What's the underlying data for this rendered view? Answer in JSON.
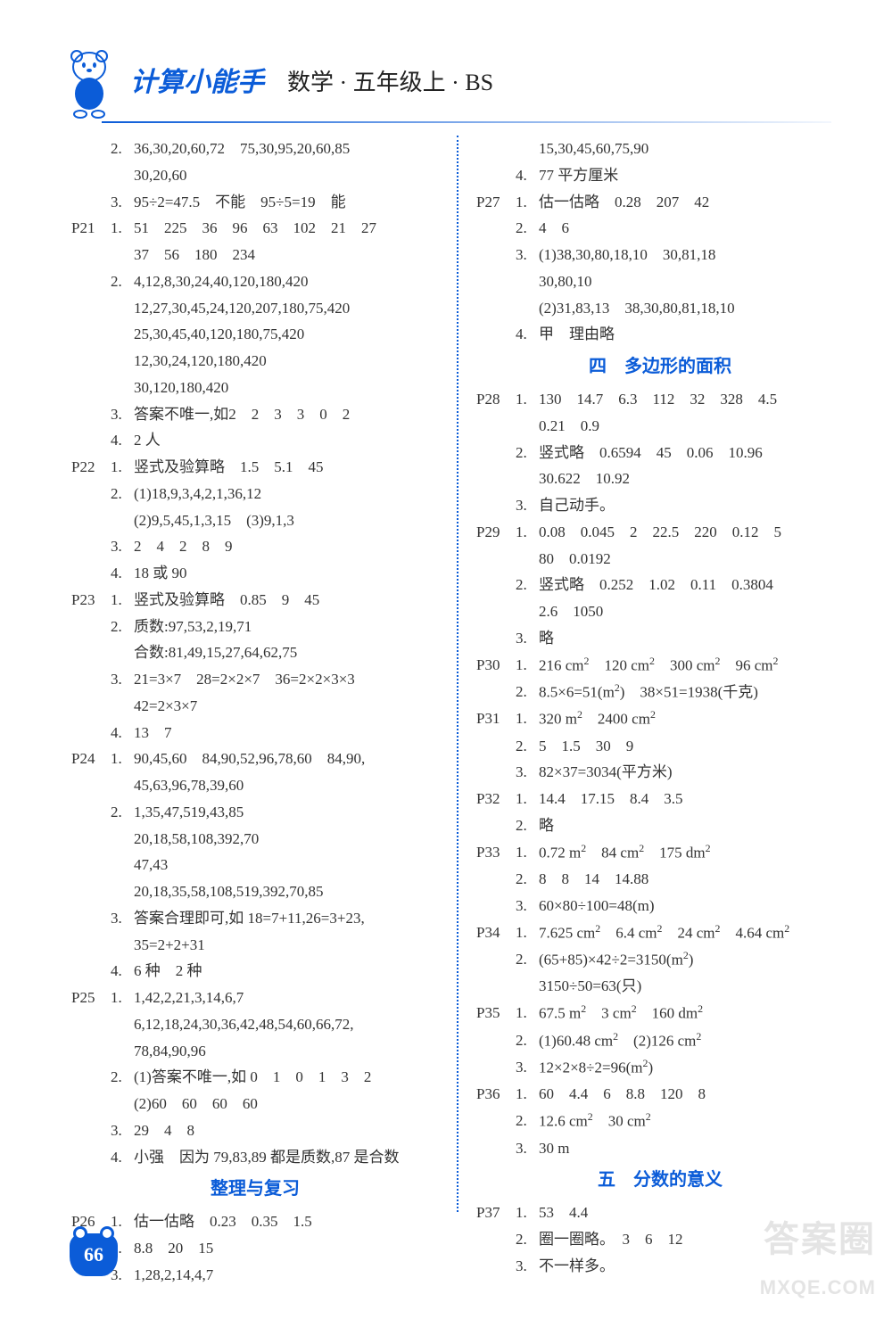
{
  "header": {
    "series_title": "计算小能手",
    "subtitle": "数学 · 五年级上 · BS"
  },
  "page_number": "66",
  "watermark": {
    "line1": "答案圈",
    "line2": "MXQE.COM"
  },
  "sections": {
    "review": "整理与复习",
    "ch4": "四　多边形的面积",
    "ch5": "五　分数的意义"
  },
  "left": [
    {
      "p": "",
      "q": "2.",
      "t": "36,30,20,60,72　75,30,95,20,60,85"
    },
    {
      "p": "",
      "q": "",
      "t": "30,20,60"
    },
    {
      "p": "",
      "q": "3.",
      "t": "95÷2=47.5　不能　95÷5=19　能"
    },
    {
      "p": "P21",
      "q": "1.",
      "t": "51　225　36　96　63　102　21　27"
    },
    {
      "p": "",
      "q": "",
      "t": "37　56　180　234"
    },
    {
      "p": "",
      "q": "2.",
      "t": "4,12,8,30,24,40,120,180,420"
    },
    {
      "p": "",
      "q": "",
      "t": "12,27,30,45,24,120,207,180,75,420"
    },
    {
      "p": "",
      "q": "",
      "t": "25,30,45,40,120,180,75,420"
    },
    {
      "p": "",
      "q": "",
      "t": "12,30,24,120,180,420"
    },
    {
      "p": "",
      "q": "",
      "t": "30,120,180,420"
    },
    {
      "p": "",
      "q": "3.",
      "t": "答案不唯一,如2　2　3　3　0　2"
    },
    {
      "p": "",
      "q": "4.",
      "t": "2 人"
    },
    {
      "p": "P22",
      "q": "1.",
      "t": "竖式及验算略　1.5　5.1　45"
    },
    {
      "p": "",
      "q": "2.",
      "t": "(1)18,9,3,4,2,1,36,12"
    },
    {
      "p": "",
      "q": "",
      "t": "(2)9,5,45,1,3,15　(3)9,1,3"
    },
    {
      "p": "",
      "q": "3.",
      "t": "2　4　2　8　9"
    },
    {
      "p": "",
      "q": "4.",
      "t": "18 或 90"
    },
    {
      "p": "P23",
      "q": "1.",
      "t": "竖式及验算略　0.85　9　45"
    },
    {
      "p": "",
      "q": "2.",
      "t": "质数:97,53,2,19,71"
    },
    {
      "p": "",
      "q": "",
      "t": "合数:81,49,15,27,64,62,75"
    },
    {
      "p": "",
      "q": "3.",
      "t": "21=3×7　28=2×2×7　36=2×2×3×3"
    },
    {
      "p": "",
      "q": "",
      "t": "42=2×3×7"
    },
    {
      "p": "",
      "q": "4.",
      "t": "13　7"
    },
    {
      "p": "P24",
      "q": "1.",
      "t": "90,45,60　84,90,52,96,78,60　84,90,"
    },
    {
      "p": "",
      "q": "",
      "t": "45,63,96,78,39,60"
    },
    {
      "p": "",
      "q": "2.",
      "t": "1,35,47,519,43,85"
    },
    {
      "p": "",
      "q": "",
      "t": "20,18,58,108,392,70"
    },
    {
      "p": "",
      "q": "",
      "t": "47,43"
    },
    {
      "p": "",
      "q": "",
      "t": "20,18,35,58,108,519,392,70,85"
    },
    {
      "p": "",
      "q": "3.",
      "t": "答案合理即可,如 18=7+11,26=3+23,"
    },
    {
      "p": "",
      "q": "",
      "t": "35=2+2+31"
    },
    {
      "p": "",
      "q": "4.",
      "t": "6 种　2 种"
    },
    {
      "p": "P25",
      "q": "1.",
      "t": "1,42,2,21,3,14,6,7"
    },
    {
      "p": "",
      "q": "",
      "t": "6,12,18,24,30,36,42,48,54,60,66,72,"
    },
    {
      "p": "",
      "q": "",
      "t": "78,84,90,96"
    },
    {
      "p": "",
      "q": "2.",
      "t": "(1)答案不唯一,如 0　1　0　1　3　2"
    },
    {
      "p": "",
      "q": "",
      "t": "(2)60　60　60　60"
    },
    {
      "p": "",
      "q": "3.",
      "t": "29　4　8"
    },
    {
      "p": "",
      "q": "4.",
      "t": "小强　因为 79,83,89 都是质数,87 是合数"
    },
    {
      "section": "review"
    },
    {
      "p": "P26",
      "q": "1.",
      "t": "估一估略　0.23　0.35　1.5"
    },
    {
      "p": "",
      "q": "2.",
      "t": "8.8　20　15"
    },
    {
      "p": "",
      "q": "3.",
      "t": "1,28,2,14,4,7"
    }
  ],
  "right": [
    {
      "p": "",
      "q": "",
      "t": "15,30,45,60,75,90"
    },
    {
      "p": "",
      "q": "4.",
      "t": "77 平方厘米"
    },
    {
      "p": "P27",
      "q": "1.",
      "t": "估一估略　0.28　207　42"
    },
    {
      "p": "",
      "q": "2.",
      "t": "4　6"
    },
    {
      "p": "",
      "q": "3.",
      "t": "(1)38,30,80,18,10　30,81,18"
    },
    {
      "p": "",
      "q": "",
      "t": "30,80,10"
    },
    {
      "p": "",
      "q": "",
      "t": "(2)31,83,13　38,30,80,81,18,10"
    },
    {
      "p": "",
      "q": "4.",
      "t": "甲　理由略"
    },
    {
      "section": "ch4"
    },
    {
      "p": "P28",
      "q": "1.",
      "t": "130　14.7　6.3　112　32　328　4.5"
    },
    {
      "p": "",
      "q": "",
      "t": "0.21　0.9"
    },
    {
      "p": "",
      "q": "2.",
      "t": "竖式略　0.6594　45　0.06　10.96"
    },
    {
      "p": "",
      "q": "",
      "t": "30.622　10.92"
    },
    {
      "p": "",
      "q": "3.",
      "t": "自己动手。"
    },
    {
      "p": "P29",
      "q": "1.",
      "t": "0.08　0.045　2　22.5　220　0.12　5"
    },
    {
      "p": "",
      "q": "",
      "t": "80　0.0192"
    },
    {
      "p": "",
      "q": "2.",
      "t": "竖式略　0.252　1.02　0.11　0.3804"
    },
    {
      "p": "",
      "q": "",
      "t": "2.6　1050"
    },
    {
      "p": "",
      "q": "3.",
      "t": "略"
    },
    {
      "p": "P30",
      "q": "1.",
      "t": "216 cm²　120 cm²　300 cm²　96 cm²"
    },
    {
      "p": "",
      "q": "2.",
      "t": "8.5×6=51(m²)　38×51=1938(千克)"
    },
    {
      "p": "P31",
      "q": "1.",
      "t": "320 m²　2400 cm²"
    },
    {
      "p": "",
      "q": "2.",
      "t": "5　1.5　30　9"
    },
    {
      "p": "",
      "q": "3.",
      "t": "82×37=3034(平方米)"
    },
    {
      "p": "P32",
      "q": "1.",
      "t": "14.4　17.15　8.4　3.5"
    },
    {
      "p": "",
      "q": "2.",
      "t": "略"
    },
    {
      "p": "P33",
      "q": "1.",
      "t": "0.72 m²　84 cm²　175 dm²"
    },
    {
      "p": "",
      "q": "2.",
      "t": "8　8　14　14.88"
    },
    {
      "p": "",
      "q": "3.",
      "t": "60×80÷100=48(m)"
    },
    {
      "p": "P34",
      "q": "1.",
      "t": "7.625 cm²　6.4 cm²　24 cm²　4.64 cm²"
    },
    {
      "p": "",
      "q": "2.",
      "t": "(65+85)×42÷2=3150(m²)"
    },
    {
      "p": "",
      "q": "",
      "t": "3150÷50=63(只)"
    },
    {
      "p": "P35",
      "q": "1.",
      "t": "67.5 m²　3 cm²　160 dm²"
    },
    {
      "p": "",
      "q": "2.",
      "t": "(1)60.48 cm²　(2)126 cm²"
    },
    {
      "p": "",
      "q": "3.",
      "t": "12×2×8÷2=96(m²)"
    },
    {
      "p": "P36",
      "q": "1.",
      "t": "60　4.4　6　8.8　120　8"
    },
    {
      "p": "",
      "q": "2.",
      "t": "12.6 cm²　30 cm²"
    },
    {
      "p": "",
      "q": "3.",
      "t": "30 m"
    },
    {
      "section": "ch5"
    },
    {
      "p": "P37",
      "q": "1.",
      "t": "53　4.4"
    },
    {
      "p": "",
      "q": "2.",
      "t": "圈一圈略。　3　6　12"
    },
    {
      "p": "",
      "q": "3.",
      "t": "不一样多。"
    }
  ]
}
